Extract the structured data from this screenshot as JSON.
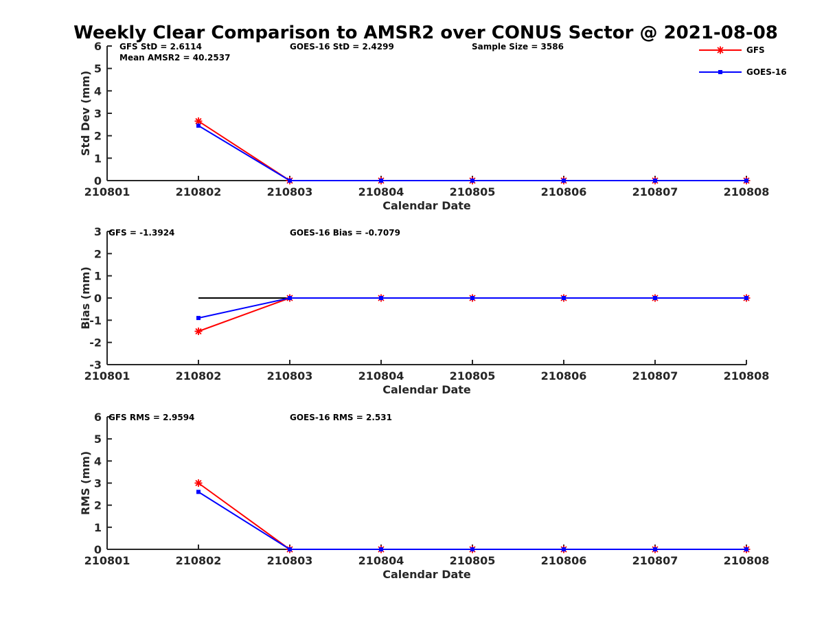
{
  "title": "Weekly Clear Comparison to AMSR2 over CONUS Sector @ 2021-08-08",
  "colors": {
    "gfs": "#ff0000",
    "goes16": "#0000ff",
    "zero_line": "#000000",
    "axis": "#262626"
  },
  "legend": [
    {
      "name": "GFS",
      "marker": "asterisk",
      "color": "#ff0000"
    },
    {
      "name": "GOES-16",
      "marker": "square",
      "color": "#0000ff"
    }
  ],
  "chart_data": [
    {
      "type": "line",
      "id": "std",
      "title": "Weekly Clear Comparison to AMSR2 over CONUS Sector @ 2021-08-08",
      "xlabel": "Calendar Date",
      "ylabel": "Std Dev (mm)",
      "x": [
        "210801",
        "210802",
        "210803",
        "210804",
        "210805",
        "210806",
        "210807",
        "210808"
      ],
      "yticks": [
        "0",
        "1",
        "2",
        "3",
        "4",
        "5",
        "6"
      ],
      "ylim": [
        0,
        6
      ],
      "annotations": [
        "GFS StD = 2.6114",
        "Mean AMSR2 = 40.2537",
        "GOES-16 StD = 2.4299",
        "Sample Size = 3586"
      ],
      "series": [
        {
          "name": "GFS",
          "x": [
            "210802",
            "210803",
            "210804",
            "210805",
            "210806",
            "210807",
            "210808"
          ],
          "values": [
            2.65,
            0,
            0,
            0,
            0,
            0,
            0
          ]
        },
        {
          "name": "GOES-16",
          "x": [
            "210802",
            "210803",
            "210804",
            "210805",
            "210806",
            "210807",
            "210808"
          ],
          "values": [
            2.45,
            0,
            0,
            0,
            0,
            0,
            0
          ]
        }
      ],
      "legend": "top-right",
      "grid": false
    },
    {
      "type": "line",
      "id": "bias",
      "xlabel": "Calendar Date",
      "ylabel": "Bias (mm)",
      "x": [
        "210801",
        "210802",
        "210803",
        "210804",
        "210805",
        "210806",
        "210807",
        "210808"
      ],
      "yticks": [
        "-3",
        "-2",
        "-1",
        "0",
        "1",
        "2",
        "3"
      ],
      "ylim": [
        -3,
        3
      ],
      "annotations": [
        "GFS = -1.3924",
        "GOES-16 Bias  = -0.7079"
      ],
      "zero_line": {
        "from": "210802",
        "to": "210808",
        "value": 0
      },
      "series": [
        {
          "name": "GFS",
          "x": [
            "210802",
            "210803",
            "210804",
            "210805",
            "210806",
            "210807",
            "210808"
          ],
          "values": [
            -1.5,
            0,
            0,
            0,
            0,
            0,
            0
          ]
        },
        {
          "name": "GOES-16",
          "x": [
            "210802",
            "210803",
            "210804",
            "210805",
            "210806",
            "210807",
            "210808"
          ],
          "values": [
            -0.9,
            0,
            0,
            0,
            0,
            0,
            0
          ]
        }
      ],
      "grid": false
    },
    {
      "type": "line",
      "id": "rms",
      "xlabel": "Calendar Date",
      "ylabel": "RMS (mm)",
      "x": [
        "210801",
        "210802",
        "210803",
        "210804",
        "210805",
        "210806",
        "210807",
        "210808"
      ],
      "yticks": [
        "0",
        "1",
        "2",
        "3",
        "4",
        "5",
        "6"
      ],
      "ylim": [
        0,
        6
      ],
      "annotations": [
        "GFS RMS = 2.9594",
        "GOES-16 RMS = 2.531"
      ],
      "series": [
        {
          "name": "GFS",
          "x": [
            "210802",
            "210803",
            "210804",
            "210805",
            "210806",
            "210807",
            "210808"
          ],
          "values": [
            3.0,
            0,
            0,
            0,
            0,
            0,
            0
          ]
        },
        {
          "name": "GOES-16",
          "x": [
            "210802",
            "210803",
            "210804",
            "210805",
            "210806",
            "210807",
            "210808"
          ],
          "values": [
            2.6,
            0,
            0,
            0,
            0,
            0,
            0
          ]
        }
      ],
      "grid": false
    }
  ]
}
